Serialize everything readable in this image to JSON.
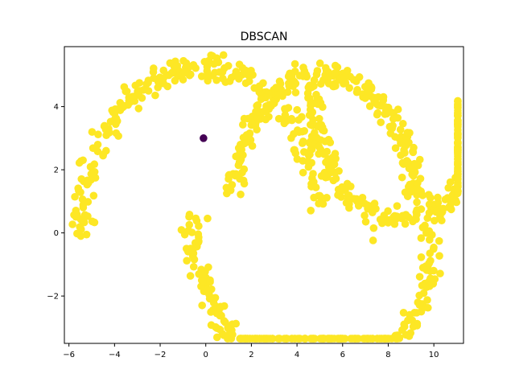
{
  "chart_data": {
    "type": "scatter",
    "title": "DBSCAN",
    "xlabel": "",
    "ylabel": "",
    "xlim": [
      -6.2,
      11.3
    ],
    "ylim": [
      -3.5,
      5.9
    ],
    "xticks": [
      -6,
      -4,
      -2,
      0,
      2,
      4,
      6,
      8,
      10
    ],
    "yticks": [
      -2,
      0,
      2,
      4
    ],
    "grid": false,
    "legend": "none",
    "colors": {
      "cluster": "#fde725",
      "noise": "#440154"
    },
    "series": [
      {
        "role": "cluster",
        "approx_point_count": 1000,
        "shape_components": [
          {
            "kind": "moon_upper",
            "center": [
              -0.2,
              0.0
            ],
            "radius": 5.3,
            "angle_range_deg": [
              8,
              180
            ]
          },
          {
            "kind": "moon_lower",
            "center": [
              4.8,
              0.45
            ],
            "radius": 5.3,
            "angle_range_deg": [
              180,
              355
            ]
          },
          {
            "kind": "moon_upper",
            "center": [
              5.2,
              1.0
            ],
            "radius": 4.0,
            "angle_range_deg": [
              0,
              178
            ]
          },
          {
            "kind": "moon_lower",
            "center": [
              8.5,
              4.2
            ],
            "radius": 3.8,
            "angle_range_deg": [
              175,
              360
            ]
          }
        ]
      },
      {
        "role": "noise",
        "points": [
          [
            -0.1,
            3.0
          ]
        ]
      }
    ]
  }
}
